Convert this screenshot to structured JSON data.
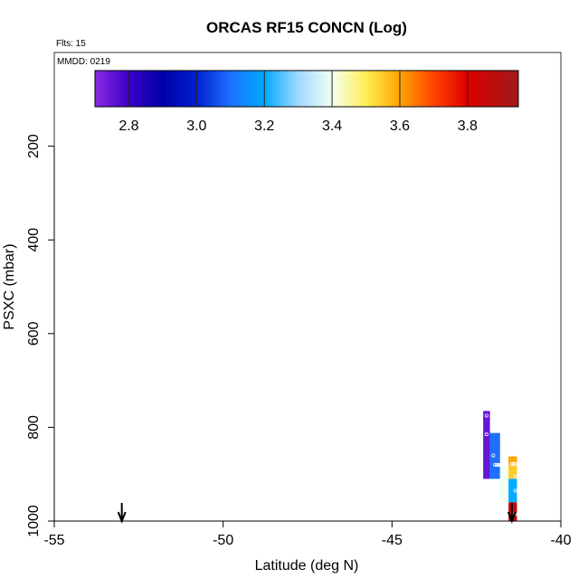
{
  "chart_data": {
    "type": "heatmap",
    "title": "ORCAS RF15 CONCN (Log)",
    "annotations": {
      "flights": "Flts: 15",
      "date": "MMDD: 0219"
    },
    "xlabel": "Latitude (deg N)",
    "ylabel": "PSXC (mbar)",
    "xlim": [
      -55,
      -40
    ],
    "ylim": [
      1000,
      0
    ],
    "y_reversed": true,
    "grid": false,
    "x_ticks": [
      -55,
      -50,
      -45,
      -40
    ],
    "x_tick_labels": [
      "-55",
      "-50",
      "-45",
      "-40"
    ],
    "y_ticks": [
      200,
      400,
      600,
      800,
      1000
    ],
    "y_tick_labels": [
      "200",
      "400",
      "600",
      "800",
      "1000"
    ],
    "colorbar": {
      "placement": "top-inside",
      "range": [
        2.7,
        3.95
      ],
      "ticks": [
        2.8,
        3.0,
        3.2,
        3.4,
        3.6,
        3.8
      ],
      "tick_labels": [
        "2.8",
        "3.0",
        "3.2",
        "3.4",
        "3.6",
        "3.8"
      ],
      "stops": [
        {
          "v": 2.7,
          "color": "#8a2be2"
        },
        {
          "v": 2.8,
          "color": "#3a00c8"
        },
        {
          "v": 2.9,
          "color": "#0000a8"
        },
        {
          "v": 3.0,
          "color": "#0020d0"
        },
        {
          "v": 3.1,
          "color": "#1e70ff"
        },
        {
          "v": 3.2,
          "color": "#00aaff"
        },
        {
          "v": 3.3,
          "color": "#a0d8ff"
        },
        {
          "v": 3.4,
          "color": "#f2fff2"
        },
        {
          "v": 3.5,
          "color": "#ffee55"
        },
        {
          "v": 3.6,
          "color": "#ffa500"
        },
        {
          "v": 3.7,
          "color": "#ff4400"
        },
        {
          "v": 3.8,
          "color": "#dd0000"
        },
        {
          "v": 3.95,
          "color": "#a01a1a"
        }
      ]
    },
    "cells": [
      {
        "lat0": -42.3,
        "lat1": -42.1,
        "p0": 765,
        "p1": 910,
        "value": 2.75
      },
      {
        "lat0": -42.1,
        "lat1": -41.8,
        "p0": 812,
        "p1": 910,
        "value": 3.1
      },
      {
        "lat0": -41.8,
        "lat1": -41.55,
        "p0": 880,
        "p1": 960,
        "value": 3.4
      },
      {
        "lat0": -41.55,
        "lat1": -41.3,
        "p0": 862,
        "p1": 880,
        "value": 3.6
      },
      {
        "lat0": -41.55,
        "lat1": -41.3,
        "p0": 880,
        "p1": 910,
        "value": 3.55
      },
      {
        "lat0": -41.55,
        "lat1": -41.3,
        "p0": 910,
        "p1": 960,
        "value": 3.2
      },
      {
        "lat0": -41.55,
        "lat1": -41.3,
        "p0": 960,
        "p1": 1000,
        "value": 3.85
      }
    ],
    "sample_points": [
      {
        "lat": -42.2,
        "p": 775
      },
      {
        "lat": -42.2,
        "p": 815
      },
      {
        "lat": -42.0,
        "p": 860
      },
      {
        "lat": -41.95,
        "p": 880
      },
      {
        "lat": -41.9,
        "p": 880
      },
      {
        "lat": -41.85,
        "p": 880
      },
      {
        "lat": -41.8,
        "p": 880
      },
      {
        "lat": -41.75,
        "p": 880
      },
      {
        "lat": -41.7,
        "p": 880
      },
      {
        "lat": -41.65,
        "p": 880
      },
      {
        "lat": -41.45,
        "p": 878
      },
      {
        "lat": -41.4,
        "p": 878
      },
      {
        "lat": -41.35,
        "p": 878
      },
      {
        "lat": -41.35,
        "p": 905
      },
      {
        "lat": -41.35,
        "p": 935
      },
      {
        "lat": -41.35,
        "p": 985
      }
    ],
    "arrows": [
      {
        "lat": -53.0
      },
      {
        "lat": -41.45
      }
    ]
  }
}
